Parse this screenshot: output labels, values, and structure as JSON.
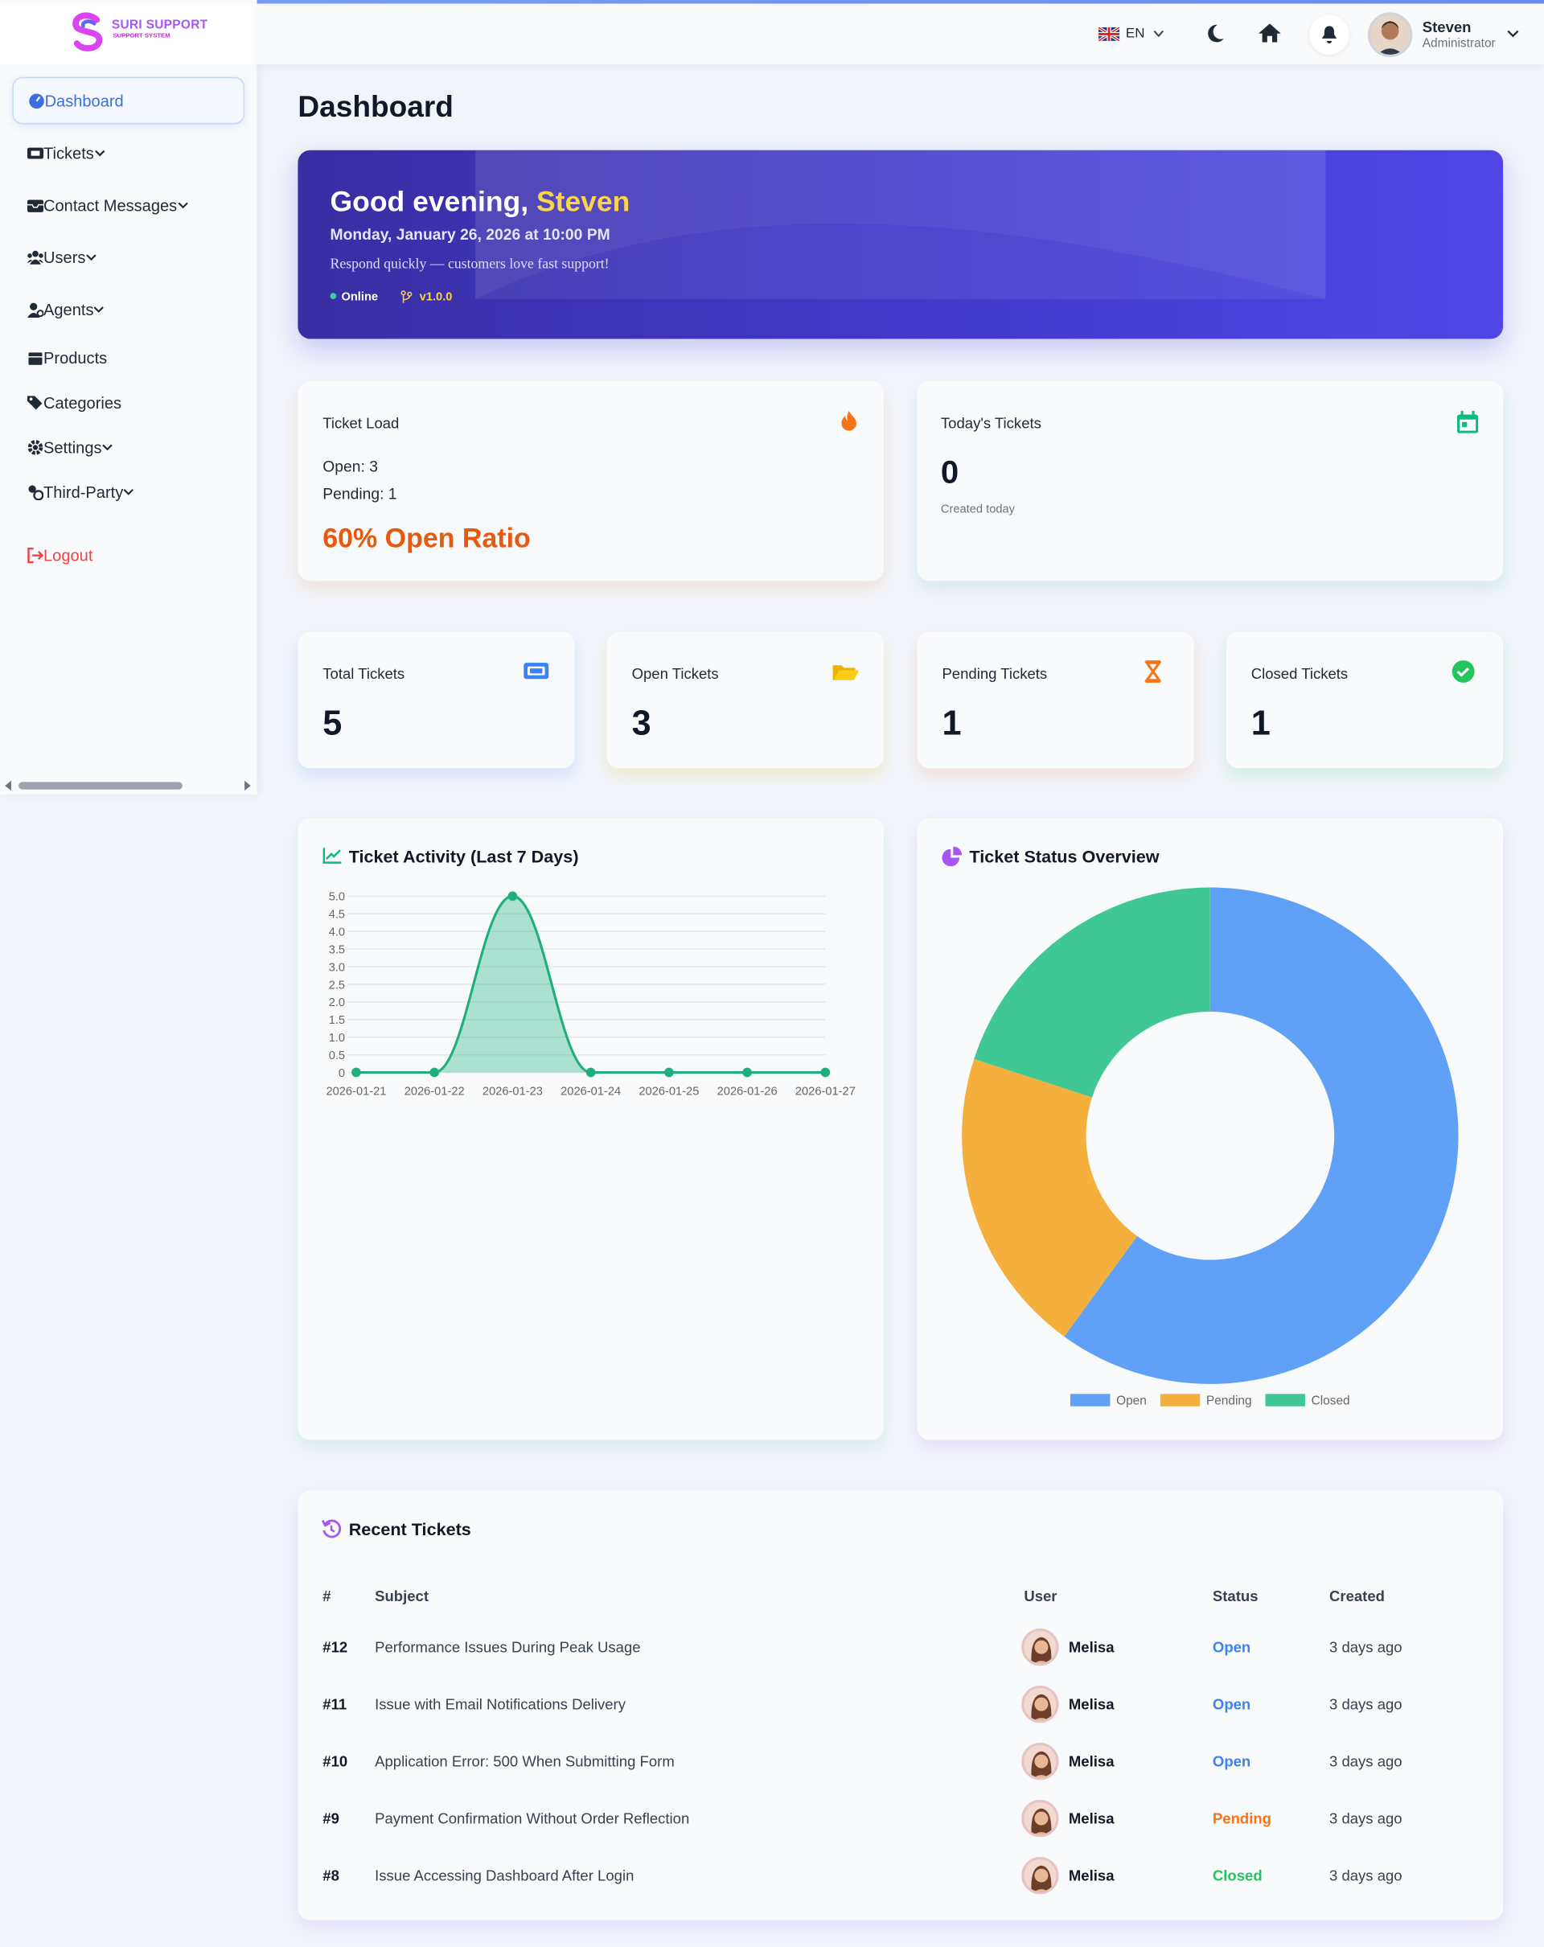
{
  "logo": {
    "name": "SURI SUPPORT",
    "tagline": "SUPPORT SYSTEM"
  },
  "sidebar": {
    "items": [
      "Dashboard",
      "Tickets",
      "Contact Messages",
      "Users",
      "Agents",
      "Products",
      "Categories",
      "Settings",
      "Third-Party"
    ],
    "logout": "Logout"
  },
  "topbar": {
    "language": "EN",
    "user_name": "Steven",
    "user_role": "Administrator"
  },
  "page_title": "Dashboard",
  "banner": {
    "greeting": "Good evening,",
    "name": "Steven",
    "datetime": "Monday, January 26, 2026 at 10:00 PM",
    "message": "Respond quickly — customers love fast support!",
    "status": "Online",
    "version": "v1.0.0"
  },
  "ticket_load": {
    "title": "Ticket Load",
    "open": "Open: 3",
    "pending": "Pending: 1",
    "ratio": "60% Open Ratio"
  },
  "today": {
    "title": "Today's Tickets",
    "value": 0,
    "caption": "Created today"
  },
  "stats": [
    {
      "label": "Total Tickets",
      "value": 5
    },
    {
      "label": "Open Tickets",
      "value": 3
    },
    {
      "label": "Pending Tickets",
      "value": 1
    },
    {
      "label": "Closed Tickets",
      "value": 1
    }
  ],
  "chart_data": [
    {
      "type": "line",
      "title": "Ticket Activity (Last 7 Days)",
      "categories": [
        "2026-01-21",
        "2026-01-22",
        "2026-01-23",
        "2026-01-24",
        "2026-01-25",
        "2026-01-26",
        "2026-01-27"
      ],
      "values": [
        0,
        0,
        5,
        0,
        0,
        0,
        0
      ],
      "color": "#1fae7e",
      "ylim": [
        0,
        5
      ],
      "yticks": [
        0,
        0.5,
        {
          "value": 1,
          "label": "1.0"
        },
        1.5,
        {
          "value": 2,
          "label": "2.0"
        },
        2.5,
        {
          "value": 3,
          "label": "3.0"
        },
        3.5,
        {
          "value": 4,
          "label": "4.0"
        },
        4.5,
        {
          "value": 5,
          "label": "5.0"
        }
      ],
      "grid": true
    },
    {
      "type": "doughnut",
      "title": "Ticket Status Overview",
      "categories": [
        "Open",
        "Pending",
        "Closed"
      ],
      "values": [
        3,
        1,
        1
      ],
      "colors": [
        "#60a0f6",
        "#f5af3c",
        "#3fc796"
      ],
      "legend": "bottom"
    }
  ],
  "recent_tickets": {
    "title": "Recent Tickets",
    "columns": [
      "#",
      "Subject",
      "User",
      "Status",
      "Created"
    ],
    "rows": [
      {
        "id": "#12",
        "subject": "Performance Issues During Peak Usage",
        "user": "Melisa",
        "status": "Open",
        "status_color": "#3b82f6",
        "created": "3 days ago"
      },
      {
        "id": "#11",
        "subject": "Issue with Email Notifications Delivery",
        "user": "Melisa",
        "status": "Open",
        "status_color": "#3b82f6",
        "created": "3 days ago"
      },
      {
        "id": "#10",
        "subject": "Application Error: 500 When Submitting Form",
        "user": "Melisa",
        "status": "Open",
        "status_color": "#3b82f6",
        "created": "3 days ago"
      },
      {
        "id": "#9",
        "subject": "Payment Confirmation Without Order Reflection",
        "user": "Melisa",
        "status": "Pending",
        "status_color": "#f97316",
        "created": "3 days ago"
      },
      {
        "id": "#8",
        "subject": "Issue Accessing Dashboard After Login",
        "user": "Melisa",
        "status": "Closed",
        "status_color": "#22c55e",
        "created": "3 days ago"
      }
    ]
  }
}
